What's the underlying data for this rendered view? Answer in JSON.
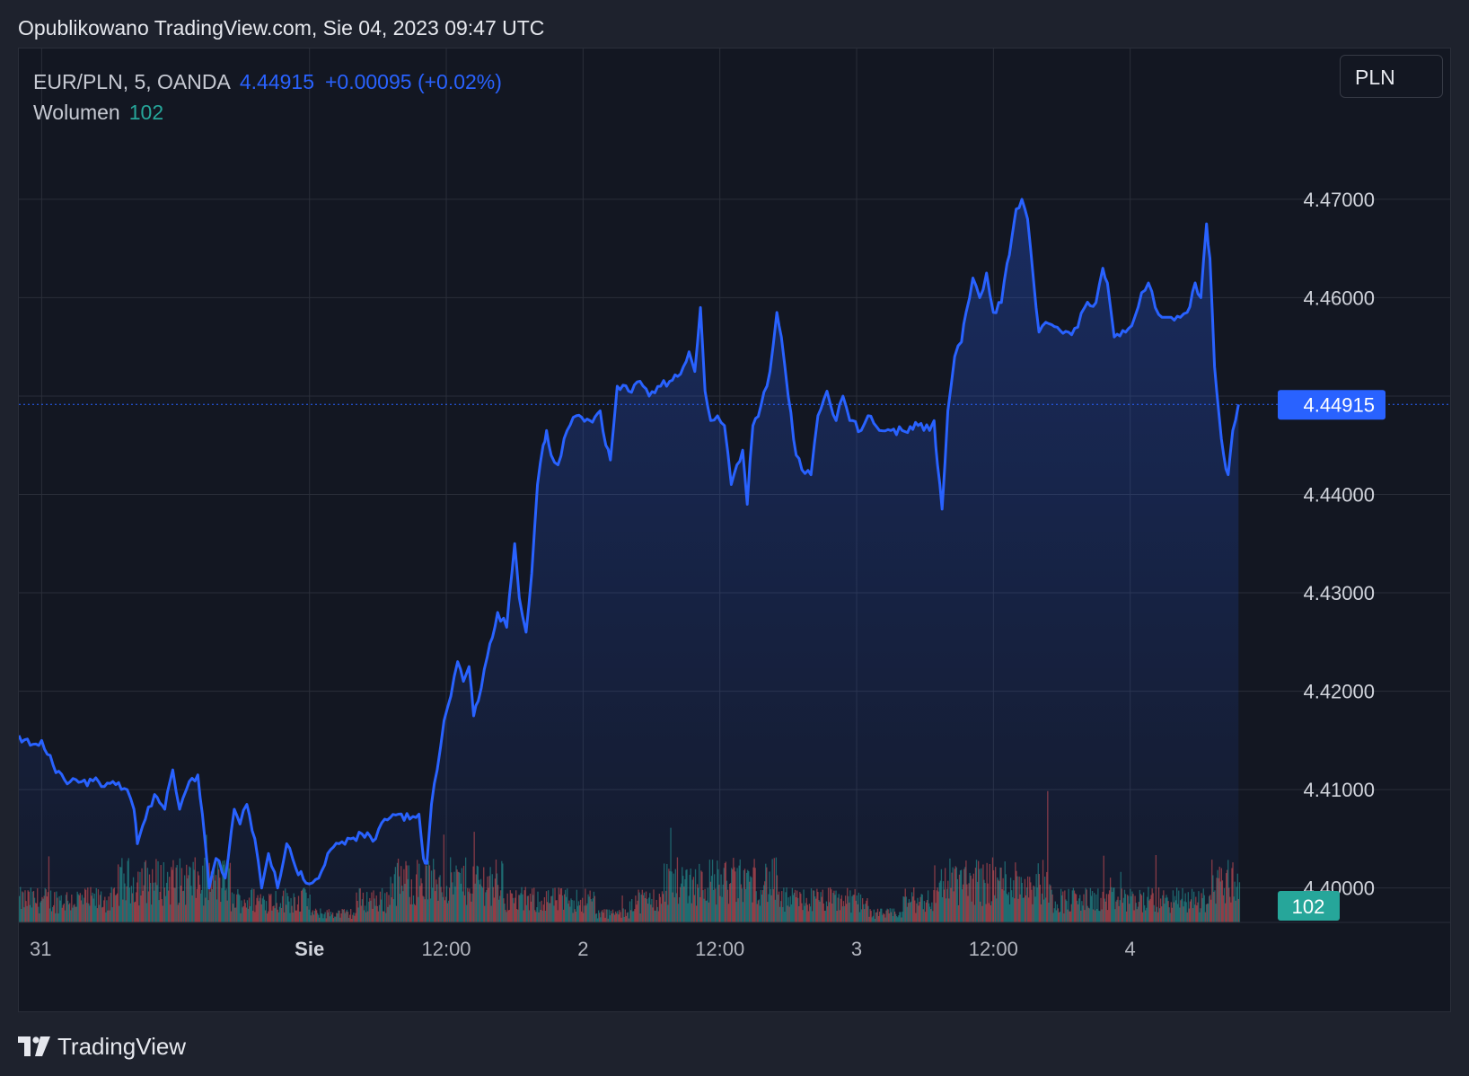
{
  "header": {
    "published": "Opublikowano TradingView.com, Sie 04, 2023 09:47 UTC"
  },
  "legend": {
    "symbol": "EUR/PLN, 5, OANDA",
    "last_price": "4.44915",
    "change": "+0.00095 (+0.02%)",
    "volume_label": "Wolumen",
    "volume_value": "102"
  },
  "currency_button": "PLN",
  "footer": {
    "brand": "TradingView",
    "logo_icon": "tradingview-logo-icon"
  },
  "colors": {
    "line": "#2962ff",
    "volume_up": "#26a69a",
    "volume_down": "#ef5350",
    "background": "#131722",
    "grid": "#2a2e39"
  },
  "chart_data": {
    "type": "area",
    "title": "EUR/PLN, 5, OANDA",
    "xlabel": "",
    "ylabel": "",
    "x_tick_labels": [
      {
        "label": "31",
        "t": 0.5,
        "bold": false
      },
      {
        "label": "Sie",
        "t": 24,
        "bold": true
      },
      {
        "label": "12:00",
        "t": 36,
        "bold": false
      },
      {
        "label": "2",
        "t": 48,
        "bold": false
      },
      {
        "label": "12:00",
        "t": 60,
        "bold": false
      },
      {
        "label": "3",
        "t": 72,
        "bold": false
      },
      {
        "label": "12:00",
        "t": 84,
        "bold": false
      },
      {
        "label": "4",
        "t": 96,
        "bold": false
      }
    ],
    "x_range_hours": [
      -1.5,
      108
    ],
    "y_ticks": [
      4.4,
      4.41,
      4.42,
      4.43,
      4.44,
      4.46,
      4.47
    ],
    "y_tick_labels": [
      "4.40000",
      "4.41000",
      "4.42000",
      "4.43000",
      "4.44000",
      "4.46000",
      "4.47000"
    ],
    "y_range": [
      4.3965,
      4.4835
    ],
    "last_value": 4.44915,
    "last_value_label": "4.44915",
    "volume_last_label": "102",
    "volume_max": 220,
    "grid": true,
    "series": [
      {
        "name": "EUR/PLN",
        "points": [
          [
            -1.5,
            4.4155
          ],
          [
            -0.5,
            4.4145
          ],
          [
            0.5,
            4.415
          ],
          [
            1.5,
            4.4125
          ],
          [
            2.5,
            4.411
          ],
          [
            4.0,
            4.4108
          ],
          [
            5.5,
            4.4108
          ],
          [
            7.0,
            4.4105
          ],
          [
            8.0,
            4.41
          ],
          [
            8.6,
            4.408
          ],
          [
            8.9,
            4.4045
          ],
          [
            9.6,
            4.407
          ],
          [
            10.4,
            4.4095
          ],
          [
            11.3,
            4.408
          ],
          [
            12.0,
            4.412
          ],
          [
            12.6,
            4.408
          ],
          [
            13.2,
            4.41
          ],
          [
            14.2,
            4.4115
          ],
          [
            14.6,
            4.4075
          ],
          [
            15.2,
            4.4
          ],
          [
            15.8,
            4.403
          ],
          [
            16.6,
            4.401
          ],
          [
            17.4,
            4.408
          ],
          [
            17.9,
            4.4065
          ],
          [
            18.5,
            4.4085
          ],
          [
            19.2,
            4.405
          ],
          [
            19.8,
            4.4
          ],
          [
            20.4,
            4.4035
          ],
          [
            21.2,
            4.4
          ],
          [
            22.0,
            4.4045
          ],
          [
            22.8,
            4.402
          ],
          [
            23.7,
            4.4005
          ],
          [
            24.8,
            4.401
          ],
          [
            25.6,
            4.4035
          ],
          [
            26.6,
            4.4045
          ],
          [
            27.6,
            4.405
          ],
          [
            28.6,
            4.4055
          ],
          [
            29.8,
            4.405
          ],
          [
            30.6,
            4.407
          ],
          [
            31.8,
            4.4075
          ],
          [
            32.8,
            4.407
          ],
          [
            33.6,
            4.4075
          ],
          [
            34.0,
            4.403
          ],
          [
            34.3,
            4.4025
          ],
          [
            34.7,
            4.4085
          ],
          [
            35.2,
            4.412
          ],
          [
            35.8,
            4.417
          ],
          [
            36.4,
            4.4195
          ],
          [
            37.0,
            4.423
          ],
          [
            37.5,
            4.421
          ],
          [
            38.0,
            4.4225
          ],
          [
            38.4,
            4.4175
          ],
          [
            38.8,
            4.419
          ],
          [
            39.6,
            4.4235
          ],
          [
            40.5,
            4.428
          ],
          [
            41.3,
            4.4265
          ],
          [
            42.0,
            4.435
          ],
          [
            42.4,
            4.4295
          ],
          [
            43.0,
            4.426
          ],
          [
            43.5,
            4.432
          ],
          [
            44.0,
            4.441
          ],
          [
            44.5,
            4.445
          ],
          [
            44.8,
            4.4465
          ],
          [
            45.2,
            4.444
          ],
          [
            45.8,
            4.443
          ],
          [
            46.6,
            4.4465
          ],
          [
            47.4,
            4.448
          ],
          [
            48.6,
            4.4475
          ],
          [
            49.5,
            4.4485
          ],
          [
            50.0,
            4.445
          ],
          [
            50.4,
            4.4435
          ],
          [
            51.0,
            4.451
          ],
          [
            52.0,
            4.4505
          ],
          [
            53.0,
            4.4515
          ],
          [
            53.8,
            4.45
          ],
          [
            54.8,
            4.451
          ],
          [
            55.6,
            4.4515
          ],
          [
            56.3,
            4.452
          ],
          [
            57.3,
            4.4545
          ],
          [
            57.8,
            4.4525
          ],
          [
            58.3,
            4.459
          ],
          [
            58.7,
            4.4505
          ],
          [
            59.2,
            4.4475
          ],
          [
            59.8,
            4.448
          ],
          [
            60.4,
            4.447
          ],
          [
            61.0,
            4.441
          ],
          [
            61.5,
            4.443
          ],
          [
            62.0,
            4.4445
          ],
          [
            62.4,
            4.439
          ],
          [
            62.9,
            4.447
          ],
          [
            63.6,
            4.449
          ],
          [
            64.4,
            4.4525
          ],
          [
            65.0,
            4.4585
          ],
          [
            65.4,
            4.456
          ],
          [
            66.0,
            4.45
          ],
          [
            66.7,
            4.444
          ],
          [
            67.2,
            4.4425
          ],
          [
            68.0,
            4.442
          ],
          [
            68.6,
            4.448
          ],
          [
            69.4,
            4.4505
          ],
          [
            70.2,
            4.4475
          ],
          [
            70.8,
            4.45
          ],
          [
            71.4,
            4.4475
          ],
          [
            72.4,
            4.4465
          ],
          [
            73.0,
            4.448
          ],
          [
            74.0,
            4.4465
          ],
          [
            75.0,
            4.4465
          ],
          [
            76.0,
            4.4465
          ],
          [
            77.4,
            4.447
          ],
          [
            78.4,
            4.4465
          ],
          [
            78.8,
            4.4475
          ],
          [
            79.1,
            4.443
          ],
          [
            79.5,
            4.4385
          ],
          [
            80.0,
            4.4485
          ],
          [
            80.6,
            4.454
          ],
          [
            81.2,
            4.4555
          ],
          [
            81.6,
            4.4585
          ],
          [
            82.2,
            4.462
          ],
          [
            82.8,
            4.46
          ],
          [
            83.4,
            4.4625
          ],
          [
            84.0,
            4.4585
          ],
          [
            84.7,
            4.4595
          ],
          [
            85.2,
            4.4635
          ],
          [
            85.6,
            4.466
          ],
          [
            86.0,
            4.469
          ],
          [
            86.5,
            4.47
          ],
          [
            87.0,
            4.468
          ],
          [
            87.5,
            4.462
          ],
          [
            88.0,
            4.4565
          ],
          [
            88.6,
            4.4575
          ],
          [
            89.6,
            4.457
          ],
          [
            90.6,
            4.4565
          ],
          [
            91.4,
            4.457
          ],
          [
            92.0,
            4.459
          ],
          [
            93.0,
            4.4595
          ],
          [
            93.6,
            4.463
          ],
          [
            94.0,
            4.4615
          ],
          [
            94.6,
            4.456
          ],
          [
            95.6,
            4.4565
          ],
          [
            96.4,
            4.458
          ],
          [
            97.0,
            4.4605
          ],
          [
            97.6,
            4.4615
          ],
          [
            98.2,
            4.459
          ],
          [
            98.8,
            4.458
          ],
          [
            99.6,
            4.458
          ],
          [
            100.4,
            4.458
          ],
          [
            101.0,
            4.4585
          ],
          [
            101.7,
            4.4615
          ],
          [
            102.2,
            4.46
          ],
          [
            102.7,
            4.4675
          ],
          [
            103.0,
            4.464
          ],
          [
            103.4,
            4.453
          ],
          [
            103.8,
            4.448
          ],
          [
            104.2,
            4.444
          ],
          [
            104.6,
            4.442
          ],
          [
            105.0,
            4.4465
          ],
          [
            105.5,
            4.44915
          ]
        ]
      }
    ]
  }
}
